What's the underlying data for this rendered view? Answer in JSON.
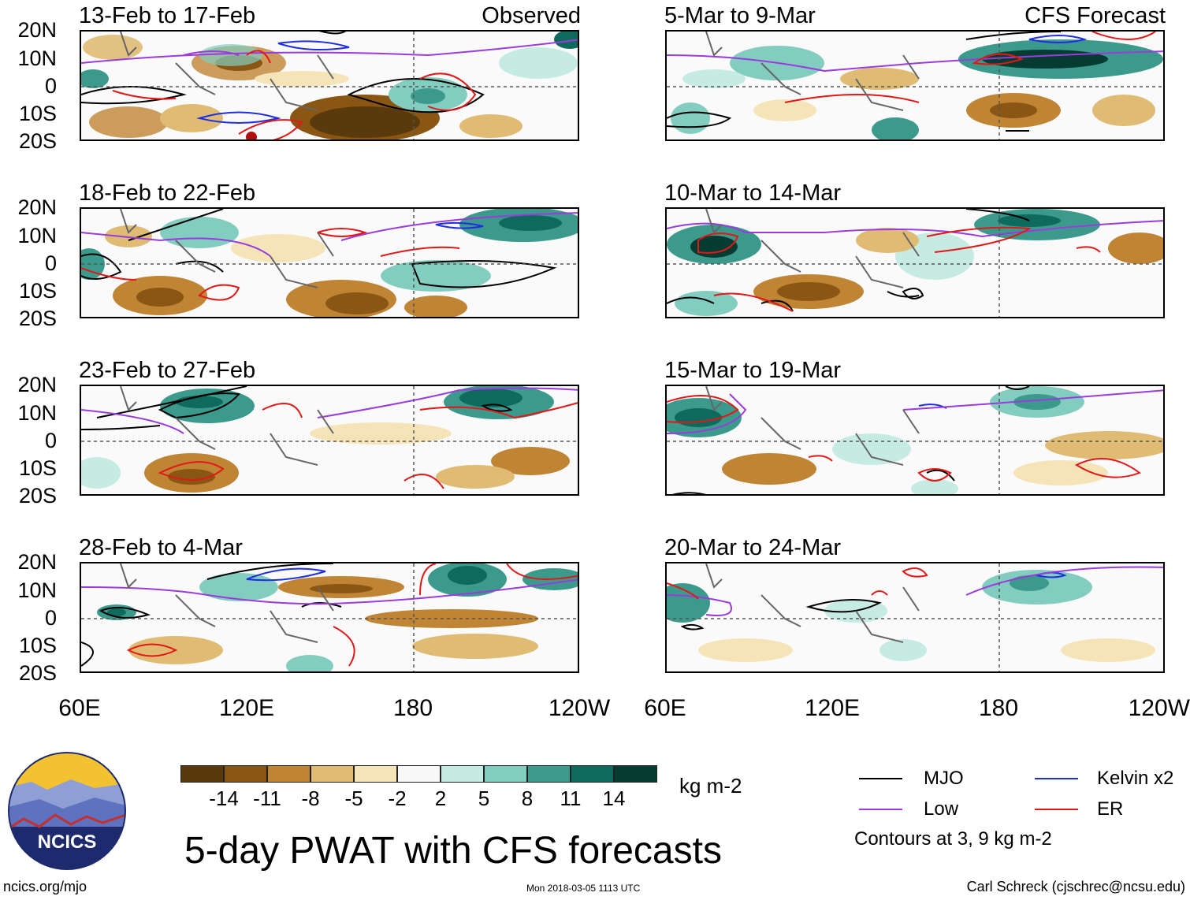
{
  "panels_left": [
    {
      "title": "13-Feb to 17-Feb",
      "label": "Observed"
    },
    {
      "title": "18-Feb to 22-Feb",
      "label": ""
    },
    {
      "title": "23-Feb to 27-Feb",
      "label": ""
    },
    {
      "title": "28-Feb to 4-Mar",
      "label": ""
    }
  ],
  "panels_right": [
    {
      "title": "5-Mar to 9-Mar",
      "label": "CFS Forecast"
    },
    {
      "title": "10-Mar to 14-Mar",
      "label": ""
    },
    {
      "title": "15-Mar to 19-Mar",
      "label": ""
    },
    {
      "title": "20-Mar to 24-Mar",
      "label": ""
    }
  ],
  "lat_labels": [
    "20N",
    "10N",
    "0",
    "10S",
    "20S"
  ],
  "lon_labels": [
    "60E",
    "120E",
    "180",
    "120W"
  ],
  "colorbar": {
    "colors": [
      "#5a3a0c",
      "#8a5614",
      "#bf8434",
      "#dfbb74",
      "#f5e4b8",
      "#f8f8f8",
      "#c6ebe3",
      "#82cdbf",
      "#3b9a8c",
      "#0d6a5c",
      "#043c32"
    ],
    "ticks": [
      "-14",
      "-11",
      "-8",
      "-5",
      "-2",
      "2",
      "5",
      "8",
      "11",
      "14"
    ],
    "units": "kg m-2"
  },
  "legend": {
    "items": [
      {
        "name": "MJO",
        "color": "#000000"
      },
      {
        "name": "Kelvin x2",
        "color": "#1f2fe0"
      },
      {
        "name": "Low",
        "color": "#9a3bdc"
      },
      {
        "name": "ER",
        "color": "#e01818"
      }
    ],
    "note": "Contours at 3, 9 kg m-2"
  },
  "main_title": "5-day PWAT with CFS forecasts",
  "logo_text": "NCICS",
  "footer": {
    "site": "ncics.org/mjo",
    "timestamp": "Mon 2018-03-05 1113 UTC",
    "credit": "Carl Schreck (cjschrec@ncsu.edu)"
  }
}
